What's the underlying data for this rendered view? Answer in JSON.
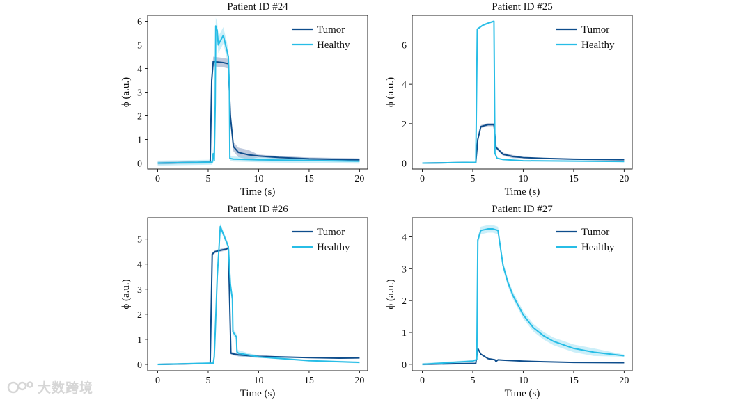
{
  "figure": {
    "watermark": "大数跨境"
  },
  "colors": {
    "tumor": "#0e4d8c",
    "healthy": "#27bde6",
    "tumor_band": "#6f88b3",
    "healthy_band": "#8fdcf2"
  },
  "chart_data": [
    {
      "type": "line",
      "title": "Patient ID #24",
      "xlabel": "Time (s)",
      "ylabel": "ϕ (a.u.)",
      "xlim": [
        -1,
        20.8
      ],
      "ylim": [
        -0.25,
        6.25
      ],
      "xticks": [
        0,
        5,
        10,
        15,
        20
      ],
      "yticks": [
        0,
        1,
        2,
        3,
        4,
        5,
        6
      ],
      "legend": {
        "location": "top-right",
        "entries": [
          "Tumor",
          "Healthy"
        ]
      },
      "series": [
        {
          "name": "Tumor",
          "x": [
            0,
            5.2,
            5.35,
            5.5,
            5.8,
            6.5,
            7.0,
            7.2,
            7.5,
            8,
            9,
            10,
            12,
            15,
            20
          ],
          "y": [
            0,
            0.04,
            3.5,
            4.3,
            4.28,
            4.25,
            4.2,
            2.0,
            0.7,
            0.45,
            0.35,
            0.3,
            0.24,
            0.18,
            0.14
          ],
          "band": 0.2
        },
        {
          "name": "Healthy",
          "x": [
            0,
            5.4,
            5.5,
            5.6,
            5.7,
            5.75,
            5.9,
            6.0,
            6.5,
            7.0,
            7.1,
            7.15,
            7.5,
            10,
            15,
            20
          ],
          "y": [
            0,
            0.04,
            0.4,
            0.1,
            2.5,
            5.8,
            5.6,
            5.0,
            5.4,
            4.5,
            3.2,
            0.2,
            0.17,
            0.14,
            0.11,
            0.08
          ],
          "band": 0.35
        }
      ]
    },
    {
      "type": "line",
      "title": "Patient ID #25",
      "xlabel": "Time (s)",
      "ylabel": "ϕ (a.u.)",
      "xlim": [
        -1,
        20.8
      ],
      "ylim": [
        -0.3,
        7.5
      ],
      "xticks": [
        0,
        5,
        10,
        15,
        20
      ],
      "yticks": [
        0,
        2,
        4,
        6
      ],
      "legend": {
        "location": "top-right",
        "entries": [
          "Tumor",
          "Healthy"
        ]
      },
      "series": [
        {
          "name": "Tumor",
          "x": [
            0,
            5.3,
            5.5,
            5.8,
            6.5,
            7.1,
            7.3,
            8,
            9,
            10,
            12,
            15,
            20
          ],
          "y": [
            0,
            0.04,
            1.2,
            1.85,
            1.95,
            1.95,
            0.8,
            0.45,
            0.33,
            0.28,
            0.24,
            0.2,
            0.17
          ],
          "band": 0.08
        },
        {
          "name": "Healthy",
          "x": [
            0,
            5.3,
            5.45,
            6.0,
            6.5,
            7.1,
            7.2,
            7.4,
            8,
            10,
            15,
            20
          ],
          "y": [
            0,
            0.04,
            6.8,
            7.0,
            7.1,
            7.2,
            0.5,
            0.25,
            0.18,
            0.12,
            0.1,
            0.08
          ],
          "band": 0.05
        }
      ]
    },
    {
      "type": "line",
      "title": "Patient ID #26",
      "xlabel": "Time (s)",
      "ylabel": "ϕ (a.u.)",
      "xlim": [
        -1,
        20.8
      ],
      "ylim": [
        -0.25,
        5.85
      ],
      "xticks": [
        0,
        5,
        10,
        15,
        20
      ],
      "yticks": [
        0,
        1,
        2,
        3,
        4,
        5
      ],
      "legend": {
        "location": "top-right",
        "entries": [
          "Tumor",
          "Healthy"
        ]
      },
      "series": [
        {
          "name": "Tumor",
          "x": [
            0,
            5.2,
            5.4,
            5.7,
            6.2,
            6.8,
            7.0,
            7.1,
            7.25,
            7.5,
            8,
            10,
            12,
            15,
            18,
            20
          ],
          "y": [
            0,
            0.04,
            4.4,
            4.5,
            4.55,
            4.6,
            4.65,
            3.0,
            0.45,
            0.42,
            0.38,
            0.32,
            0.3,
            0.27,
            0.25,
            0.26
          ],
          "band": 0.06
        },
        {
          "name": "Healthy",
          "x": [
            0,
            5.5,
            5.6,
            5.7,
            5.9,
            6.05,
            6.2,
            6.5,
            7.0,
            7.2,
            7.4,
            7.45,
            7.8,
            7.85,
            8.0,
            10,
            15,
            20
          ],
          "y": [
            0,
            0.05,
            0.3,
            1.3,
            3.5,
            4.5,
            5.5,
            5.2,
            4.7,
            3.2,
            2.6,
            1.3,
            1.1,
            0.5,
            0.45,
            0.3,
            0.15,
            0.08
          ],
          "band": 0.12
        }
      ]
    },
    {
      "type": "line",
      "title": "Patient ID #27",
      "xlabel": "Time (s)",
      "ylabel": "ϕ (a.u.)",
      "xlim": [
        -1,
        20.8
      ],
      "ylim": [
        -0.2,
        4.6
      ],
      "xticks": [
        0,
        5,
        10,
        15,
        20
      ],
      "yticks": [
        0,
        1,
        2,
        3,
        4
      ],
      "legend": {
        "location": "top-right",
        "entries": [
          "Tumor",
          "Healthy"
        ]
      },
      "series": [
        {
          "name": "Tumor",
          "x": [
            0,
            5.3,
            5.5,
            5.8,
            6.5,
            7.2,
            7.3,
            7.5,
            8,
            10,
            12,
            15,
            20
          ],
          "y": [
            0,
            0.03,
            0.5,
            0.32,
            0.18,
            0.14,
            0.09,
            0.14,
            0.13,
            0.1,
            0.08,
            0.06,
            0.05
          ],
          "band": 0.02
        },
        {
          "name": "Healthy",
          "x": [
            0,
            5.0,
            5.4,
            5.5,
            5.8,
            6.5,
            7.0,
            7.5,
            8,
            8.5,
            9,
            10,
            11,
            12,
            13,
            15,
            17,
            20
          ],
          "y": [
            0,
            0.1,
            0.15,
            3.9,
            4.2,
            4.25,
            4.25,
            4.2,
            3.1,
            2.55,
            2.15,
            1.55,
            1.15,
            0.9,
            0.72,
            0.5,
            0.38,
            0.27
          ],
          "band": 0.12
        }
      ]
    }
  ]
}
